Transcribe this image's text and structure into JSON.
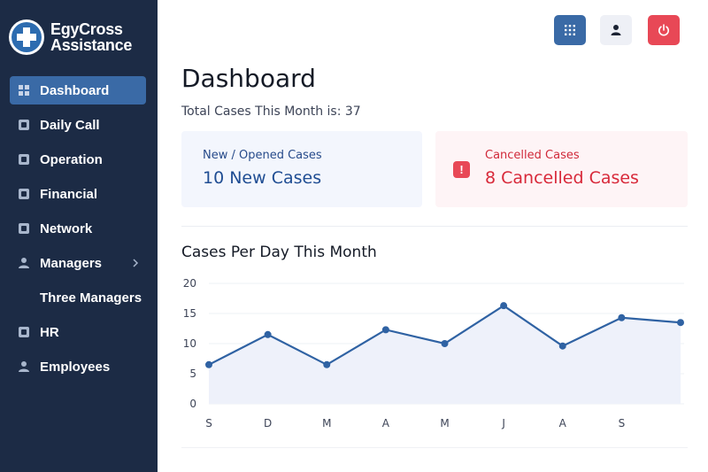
{
  "brand": {
    "line1": "EgyCross",
    "line2": "Assistance",
    "logo_icon": "medical-cross-icon"
  },
  "sidebar": {
    "items": [
      {
        "label": "Dashboard",
        "icon": "grid-icon",
        "active": true
      },
      {
        "label": "Daily Call",
        "icon": "phone-icon"
      },
      {
        "label": "Operation",
        "icon": "clipboard-icon"
      },
      {
        "label": "Financial",
        "icon": "dollar-icon"
      },
      {
        "label": "Network",
        "icon": "building-icon"
      },
      {
        "label": "Managers",
        "icon": "person-icon",
        "expandable": true
      },
      {
        "label": "Three Managers",
        "icon": "",
        "sub": true
      },
      {
        "label": "HR",
        "icon": "id-card-icon"
      },
      {
        "label": "Employees",
        "icon": "person-icon"
      }
    ]
  },
  "topbar": {
    "apps_icon": "apps-grid-icon",
    "user_icon": "user-icon",
    "power_icon": "power-icon"
  },
  "main": {
    "title": "Dashboard",
    "total_cases": "Total Cases This Month is: 37"
  },
  "cards": {
    "new": {
      "label": "New / Opened Cases",
      "value": "10 New Cases"
    },
    "cancelled": {
      "label": "Cancelled Cases",
      "value": "8 Cancelled Cases",
      "alert_glyph": "!"
    }
  },
  "colors": {
    "sidebar_bg": "#1c2b45",
    "accent": "#3a6aa6",
    "danger": "#e84856",
    "line": "#2f62a3"
  },
  "chart_data": {
    "type": "line",
    "title": "Cases Per Day This Month",
    "x_labels": [
      "S",
      "D",
      "M",
      "A",
      "M",
      "J",
      "A",
      "S"
    ],
    "x": [
      1,
      2,
      3,
      4,
      5,
      6,
      7,
      8,
      9
    ],
    "values": [
      6.5,
      11.5,
      6.5,
      12.3,
      10,
      16.3,
      9.6,
      14.3,
      13.5
    ],
    "ylim": [
      0,
      20
    ],
    "yticks": [
      0,
      5,
      10,
      15,
      20
    ],
    "grid": true,
    "area_fill": true
  }
}
